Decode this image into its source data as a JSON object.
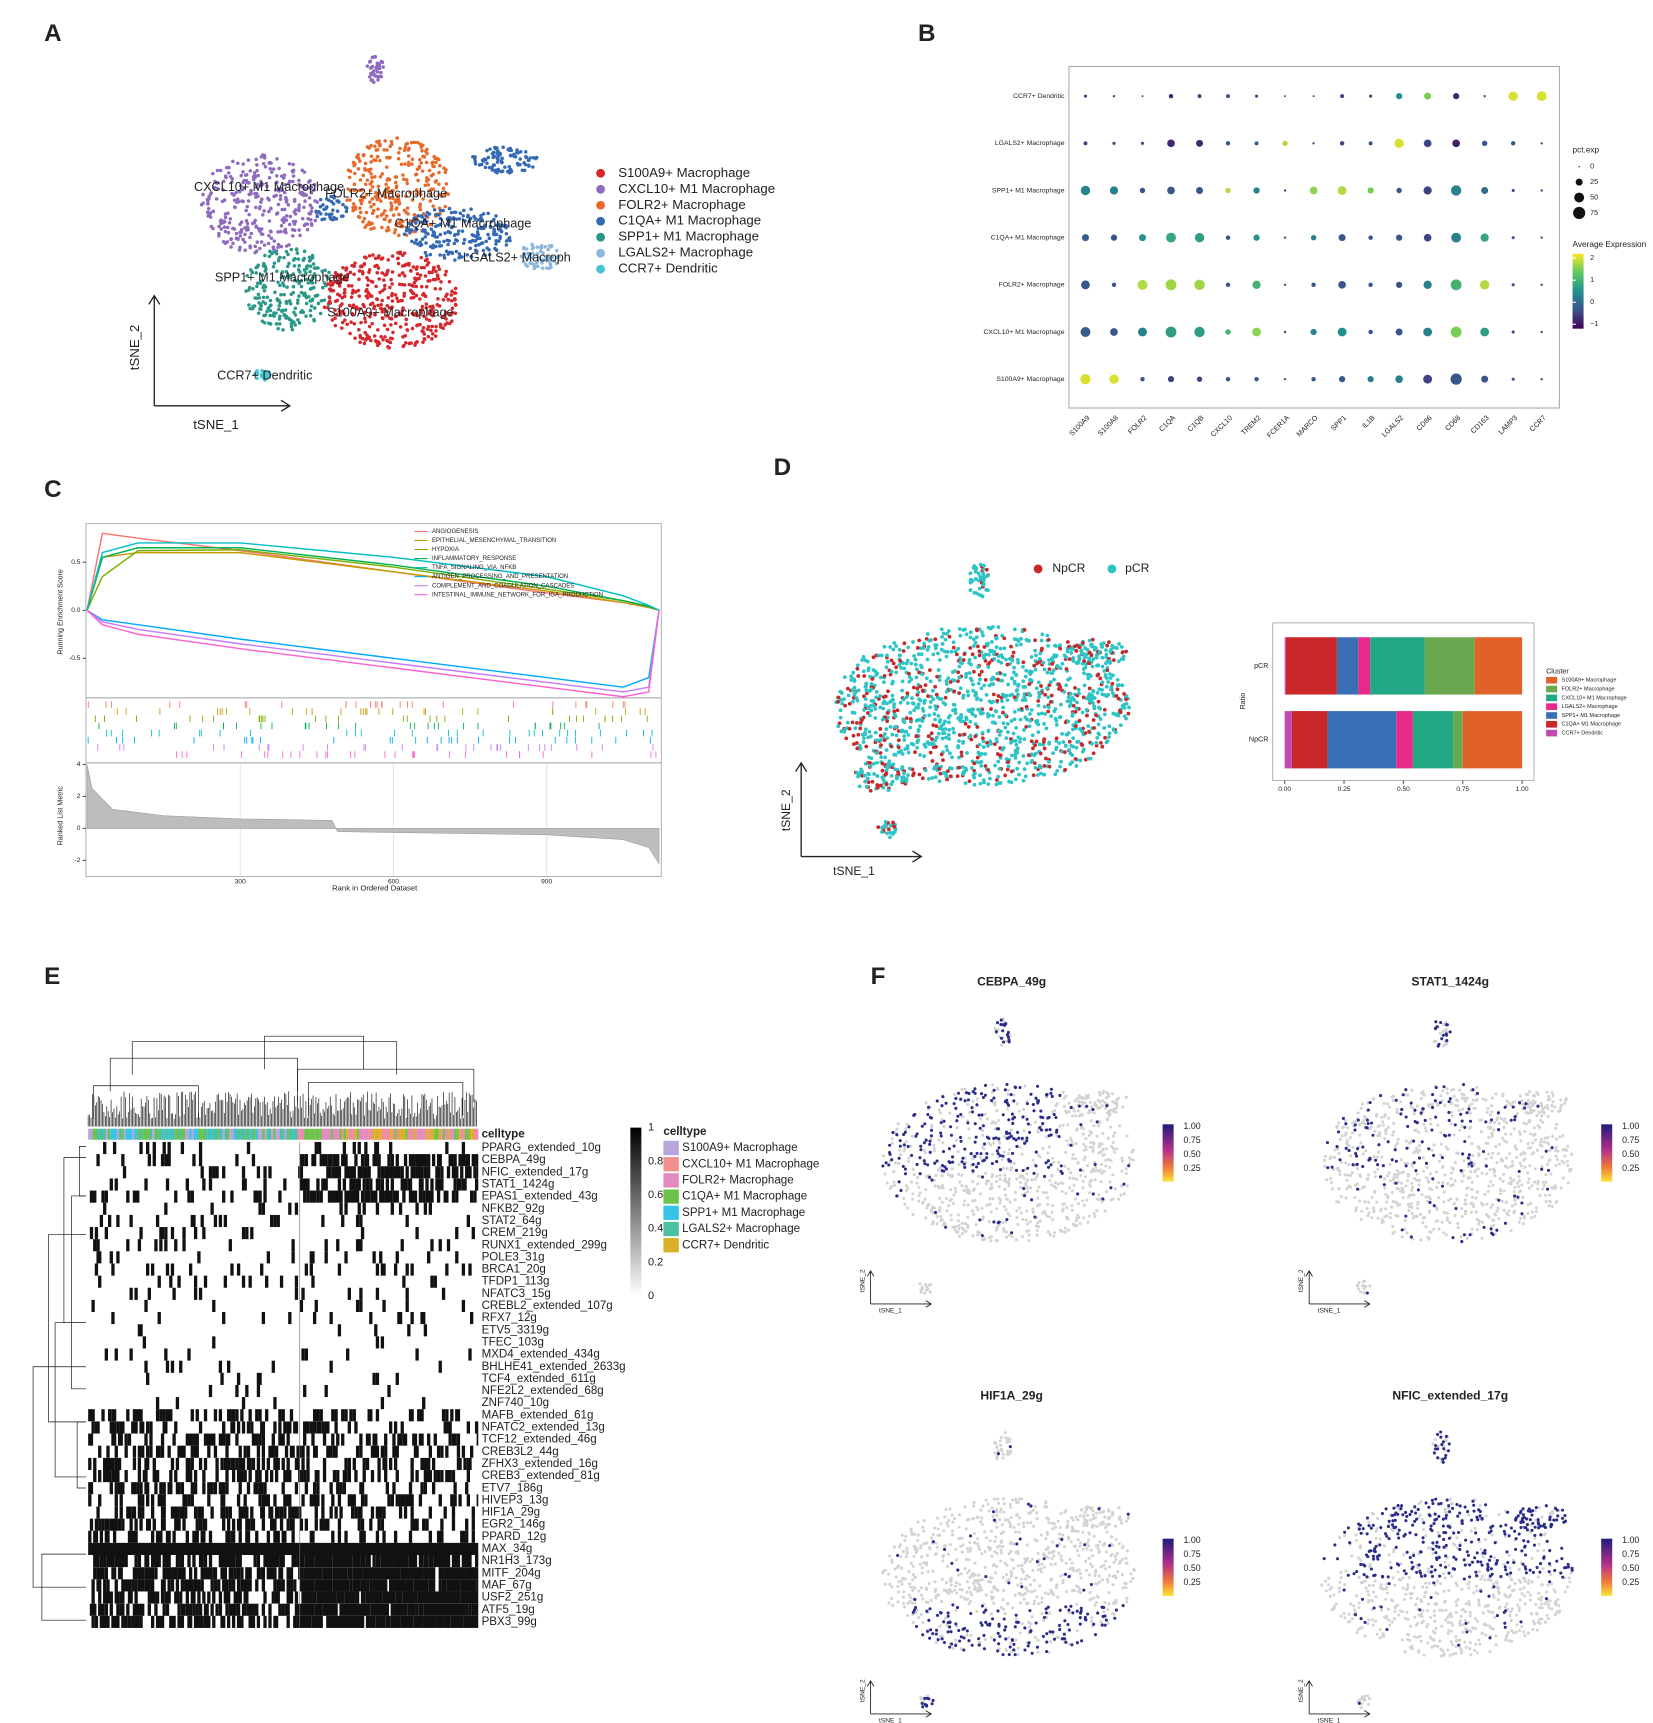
{
  "panel_labels": [
    "A",
    "B",
    "C",
    "D",
    "E",
    "F"
  ],
  "cluster_tsne": {
    "xlabel": "tSNE_1",
    "ylabel": "tSNE_2",
    "cluster_labels": [
      "CXCL10+ M1 Macrophage",
      "FOLR2+ Macrophage",
      "C1QA+ M1 Macrophage",
      "LGALS2+ Macroph",
      "SPP1+ M1 Macrophage",
      "S100A9+ Macrophage",
      "CCR7+ Dendritic"
    ],
    "legend": [
      {
        "name": "S100A9+ Macrophage",
        "color": "#d7262c"
      },
      {
        "name": "CXCL10+ M1 Macrophage",
        "color": "#8f6bbf"
      },
      {
        "name": "FOLR2+ Macrophage",
        "color": "#e8692a"
      },
      {
        "name": "C1QA+ M1 Macrophage",
        "color": "#3569b3"
      },
      {
        "name": "SPP1+ M1 Macrophage",
        "color": "#2a9888"
      },
      {
        "name": "LGALS2+ Macrophage",
        "color": "#8db8dd"
      },
      {
        "name": "CCR7+ Dendritic",
        "color": "#47c4d2"
      }
    ]
  },
  "chart_data": [
    {
      "type": "dot",
      "categories": [
        "S100A9",
        "S100A8",
        "FOLR2",
        "C1QA",
        "C1QB",
        "CXCL10",
        "TREM2",
        "FCER1A",
        "MARCO",
        "SPP1",
        "IL1B",
        "LGALS2",
        "CD86",
        "CD68",
        "CD163",
        "LAMP3",
        "CCR7"
      ],
      "series": [
        {
          "name": "CCR7+ Dendritic",
          "values": [
            -0.5,
            -0.5,
            -0.5,
            -0.8,
            -0.5,
            -0.3,
            -0.5,
            -0.3,
            -0.3,
            -0.5,
            -0.5,
            0.5,
            1.5,
            -0.8,
            -0.3,
            2,
            2
          ],
          "sizes": [
            5,
            3,
            2,
            10,
            8,
            8,
            5,
            2,
            2,
            8,
            5,
            20,
            25,
            20,
            3,
            45,
            50
          ]
        },
        {
          "name": "LGALS2+ Macrophage",
          "values": [
            -0.5,
            -0.5,
            -0.5,
            -0.8,
            -0.8,
            -0.3,
            -0.3,
            1.8,
            -0.3,
            -0.5,
            -0.3,
            2,
            -0.5,
            -0.9,
            -0.3,
            -0.3,
            -0.3
          ],
          "sizes": [
            8,
            5,
            5,
            30,
            25,
            10,
            8,
            15,
            3,
            10,
            8,
            45,
            30,
            30,
            15,
            10,
            3
          ]
        },
        {
          "name": "SPP1+ M1 Macrophage",
          "values": [
            0.3,
            0.3,
            -0.3,
            -0.3,
            -0.3,
            1.8,
            0.3,
            -0.3,
            1.6,
            1.8,
            1.5,
            -0.3,
            -0.5,
            0.3,
            0,
            -0.3,
            -0.3
          ],
          "sizes": [
            45,
            35,
            15,
            30,
            25,
            15,
            20,
            3,
            30,
            40,
            20,
            15,
            35,
            55,
            25,
            5,
            3
          ]
        },
        {
          "name": "C1QA+ M1 Macrophage",
          "values": [
            -0.2,
            -0.3,
            0.5,
            0.8,
            0.7,
            -0.3,
            0.5,
            -0.3,
            0.3,
            -0.3,
            -0.3,
            -0.3,
            -0.5,
            0.3,
            0.8,
            -0.3,
            -0.3
          ],
          "sizes": [
            25,
            20,
            25,
            50,
            45,
            10,
            20,
            3,
            15,
            25,
            10,
            20,
            30,
            50,
            35,
            5,
            3
          ]
        },
        {
          "name": "FOLR2+ Macrophage",
          "values": [
            -0.3,
            -0.3,
            1.8,
            1.7,
            1.7,
            -0.3,
            1,
            -0.3,
            -0.3,
            -0.3,
            -0.3,
            -0.3,
            0.3,
            1,
            1.8,
            -0.3,
            -0.3
          ],
          "sizes": [
            40,
            10,
            50,
            60,
            55,
            10,
            35,
            3,
            10,
            30,
            10,
            20,
            35,
            60,
            45,
            5,
            3
          ]
        },
        {
          "name": "CXCL10+ M1 Macrophage",
          "values": [
            -0.2,
            -0.3,
            0.3,
            0.7,
            0.7,
            1,
            1.6,
            -0.3,
            0.3,
            0.5,
            -0.3,
            -0.3,
            0.3,
            1.5,
            0.7,
            -0.3,
            -0.3
          ],
          "sizes": [
            50,
            30,
            40,
            60,
            55,
            15,
            40,
            3,
            20,
            40,
            10,
            25,
            40,
            60,
            40,
            5,
            3
          ]
        },
        {
          "name": "S100A9+ Macrophage",
          "values": [
            2,
            2,
            -0.3,
            -0.5,
            -0.5,
            -0.3,
            -0.3,
            -0.3,
            -0.3,
            -0.3,
            0.2,
            0.3,
            -0.5,
            -0.3,
            -0.3,
            -0.3,
            -0.3
          ],
          "sizes": [
            55,
            45,
            10,
            20,
            15,
            10,
            10,
            3,
            10,
            20,
            20,
            30,
            40,
            65,
            25,
            5,
            3
          ]
        }
      ],
      "size_legend": {
        "title": "pct.exp",
        "ticks": [
          0,
          25,
          50,
          75
        ]
      },
      "color_legend": {
        "title": "Average Expression",
        "ticks": [
          2,
          1,
          0,
          {
            "value": -1,
            "label": "−1"
          }
        ],
        "lim": [
          -1.2,
          2.2
        ],
        "colormap": [
          "#440154",
          "#3b528b",
          "#21918c",
          "#5ec962",
          "#fde725"
        ]
      }
    },
    {
      "type": "line",
      "ylabel": "Running Enrichment Score",
      "x": [
        0,
        30,
        100,
        300,
        600,
        900,
        1050,
        1100,
        1120
      ],
      "xlim": [
        0,
        1120
      ],
      "ylim": [
        -0.9,
        0.9
      ],
      "yticks": [
        0.5,
        {
          "value": 0,
          "label": "0.0"
        },
        -0.5
      ],
      "series": [
        {
          "name": "ANGIOGENESIS",
          "color": "#f8766d",
          "values": [
            0,
            0.8,
            0.75,
            0.62,
            0.4,
            0.18,
            0.08,
            0.03,
            0
          ]
        },
        {
          "name": "EPITHELIAL_MESENCHYMAL_TRANSITION",
          "color": "#c49a00",
          "values": [
            0,
            0.55,
            0.6,
            0.6,
            0.4,
            0.2,
            0.08,
            0.03,
            0
          ]
        },
        {
          "name": "HYPOXIA",
          "color": "#7cae00",
          "values": [
            0,
            0.35,
            0.62,
            0.63,
            0.45,
            0.22,
            0.1,
            0.04,
            0
          ]
        },
        {
          "name": "INFLAMMATORY_RESPONSE",
          "color": "#00b050",
          "values": [
            0,
            0.55,
            0.65,
            0.65,
            0.47,
            0.25,
            0.1,
            0.04,
            0
          ]
        },
        {
          "name": "TNFA_SIGNALING_VIA_NFKB",
          "color": "#00bfc4",
          "values": [
            0,
            0.6,
            0.7,
            0.7,
            0.55,
            0.35,
            0.15,
            0.05,
            0
          ]
        },
        {
          "name": "ANTIGEN_PROCESSING_AND_PRESENTATION",
          "color": "#00a9ff",
          "values": [
            0,
            -0.1,
            -0.15,
            -0.3,
            -0.5,
            -0.7,
            -0.8,
            -0.7,
            0
          ]
        },
        {
          "name": "COMPLEMENT_AND_COAGULATION_CASCADES",
          "color": "#c77cff",
          "values": [
            0,
            -0.12,
            -0.2,
            -0.35,
            -0.55,
            -0.75,
            -0.85,
            -0.8,
            0
          ]
        },
        {
          "name": "INTESTINAL_IMMUNE_NETWORK_FOR_IGA_PRODUCTION",
          "color": "#ff61cc",
          "values": [
            0,
            -0.15,
            -0.25,
            -0.4,
            -0.6,
            -0.8,
            -0.9,
            -0.85,
            0
          ]
        }
      ]
    },
    {
      "type": "area",
      "ylabel": "Ranked List Metric",
      "xlabel": "Rank in Ordered Dataset",
      "color": "#bdbdbd",
      "x": [
        0,
        10,
        50,
        150,
        300,
        480,
        490,
        900,
        1050,
        1100,
        1120
      ],
      "values": [
        4,
        2.5,
        1.2,
        0.8,
        0.6,
        0.5,
        -0.2,
        -0.4,
        -0.7,
        -1.2,
        -2.2
      ],
      "xlim": [
        0,
        1120
      ],
      "ylim": [
        -3,
        4.1
      ],
      "xticks": [
        300,
        600,
        900
      ],
      "yticks": [
        4,
        2,
        0,
        -2
      ],
      "grid": true
    },
    {
      "type": "stacked_barh",
      "ylabel": "Ratio",
      "legend_title": "Cluster",
      "categories": [
        "pCR",
        "NpCR"
      ],
      "xlim": [
        -0.05,
        1.05
      ],
      "xticks": [
        {
          "value": 0,
          "label": "0.00"
        },
        {
          "value": 0.25,
          "label": "0.25"
        },
        {
          "value": 0.5,
          "label": "0.50"
        },
        {
          "value": 0.75,
          "label": "0.75"
        },
        {
          "value": 1,
          "label": "1.00"
        }
      ],
      "series": [
        {
          "name": "S100A9+ Macrophage",
          "color": "#e0622a",
          "values": [
            0.2,
            0.25
          ]
        },
        {
          "name": "FOLR2+ Macrophage",
          "color": "#6aa84f",
          "values": [
            0.21,
            0.04
          ]
        },
        {
          "name": "CXCL10+ M1 Macrophage",
          "color": "#22a884",
          "values": [
            0.23,
            0.17
          ]
        },
        {
          "name": "LGALS2+ Macrophage",
          "color": "#e7298a",
          "values": [
            0.05,
            0.07
          ]
        },
        {
          "name": "SPP1+ M1 Macrophage",
          "color": "#3a6fb5",
          "values": [
            0.09,
            0.29
          ]
        },
        {
          "name": "C1QA+ M1 Macrophage",
          "color": "#c8282a",
          "values": [
            0.215,
            0.15
          ]
        },
        {
          "name": "CCR7+ Dendritic",
          "color": "#c04ab0",
          "values": [
            0.005,
            0.03
          ]
        }
      ]
    }
  ],
  "condition_tsne": {
    "xlabel": "tSNE_1",
    "ylabel": "tSNE_2",
    "legend": [
      {
        "name": "NpCR",
        "color": "#c8282a"
      },
      {
        "name": "pCR",
        "color": "#2ec4c6"
      }
    ]
  },
  "heatmap": {
    "annotation_label": "celltype",
    "legend_title": "celltype",
    "rows": [
      "PPARG_extended_10g",
      "CEBPA_49g",
      "NFIC_extended_17g",
      "STAT1_1424g",
      "EPAS1_extended_43g",
      "NFKB2_92g",
      "STAT2_64g",
      "CREM_219g",
      "RUNX1_extended_299g",
      "POLE3_31g",
      "BRCA1_20g",
      "TFDP1_113g",
      "NFATC3_15g",
      "CREBL2_extended_107g",
      "RFX7_12g",
      "ETV5_3319g",
      "TFEC_103g",
      "MXD4_extended_434g",
      "BHLHE41_extended_2633g",
      "TCF4_extended_611g",
      "NFE2L2_extended_68g",
      "ZNF740_10g",
      "MAFB_extended_61g",
      "NFATC2_extended_13g",
      "TCF12_extended_46g",
      "CREB3L2_44g",
      "ZFHX3_extended_16g",
      "CREB3_extended_81g",
      "ETV7_186g",
      "HIVEP3_13g",
      "HIF1A_29g",
      "EGR2_146g",
      "PPARD_12g",
      "MAX_34g",
      "NR1H3_173g",
      "MITF_204g",
      "MAF_67g",
      "USF2_251g",
      "ATF5_19g",
      "PBX3_99g"
    ],
    "colorbar_ticks": [
      1,
      0.8,
      0.6,
      0.4,
      0.2,
      0
    ],
    "celltypes": [
      {
        "name": "S100A9+ Macrophage",
        "color": "#b7a6d9"
      },
      {
        "name": "CXCL10+ M1 Macrophage",
        "color": "#f28f8f"
      },
      {
        "name": "FOLR2+ Macrophage",
        "color": "#e58ac0"
      },
      {
        "name": "C1QA+ M1 Macrophage",
        "color": "#6cc24a"
      },
      {
        "name": "SPP1+ M1 Macrophage",
        "color": "#35c3e8"
      },
      {
        "name": "LGALS2+ Macrophage",
        "color": "#4dbfa2"
      },
      {
        "name": "CCR7+ Dendritic",
        "color": "#d9b026"
      }
    ]
  },
  "feature_plots": {
    "titles": [
      "CEBPA_49g",
      "STAT1_1424g",
      "HIF1A_29g",
      "NFIC_extended_17g"
    ],
    "xlabel": "tSNE_1",
    "ylabel": "tSNE_2",
    "colorbar_ticks": [
      {
        "value": 1,
        "label": "1.00"
      },
      {
        "value": 0.75,
        "label": "0.75"
      },
      {
        "value": 0.5,
        "label": "0.50"
      },
      {
        "value": 0.25,
        "label": "0.25"
      }
    ]
  }
}
